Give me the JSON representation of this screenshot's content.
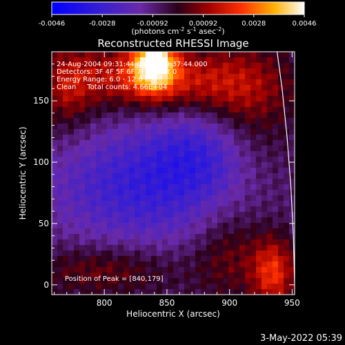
{
  "chart_data": {
    "type": "heatmap",
    "title": "Reconstructed RHESSI Image",
    "xlabel": "Heliocentric X (arcsec)",
    "ylabel": "Heliocentric Y (arcsec)",
    "xlim": [
      758,
      952
    ],
    "ylim": [
      -8,
      190
    ],
    "xticks": [
      800,
      850,
      900,
      950
    ],
    "yticks": [
      0,
      50,
      100,
      150
    ],
    "colorbar": {
      "ticks": [
        "-0.0046",
        "-0.0028",
        "-0.00092",
        "0.00092",
        "0.0028",
        "0.0046"
      ],
      "range": [
        -0.0046,
        0.0046
      ],
      "unit_label": {
        "pre": "(photons cm",
        "sup1": "-2",
        "mid1": " s",
        "sup2": "-1",
        "mid2": " asec",
        "sup3": "-2",
        "post": ")"
      }
    },
    "annotations": [
      "24-Aug-2004 09:31:44.000 to 09:37:44.000",
      "Detectors: 3F 4F 5F 6F 7F 8F, Att 0",
      "Energy Range: 6.0 - 12.0 keV",
      "Clean     Total counts: 4.66E+04"
    ],
    "peak_label": "Position of Peak = [840,179]",
    "peak": [
      840,
      179
    ],
    "limb": [
      [
        938,
        190
      ],
      [
        942,
        160
      ],
      [
        946,
        120
      ],
      [
        949,
        80
      ],
      [
        951,
        40
      ],
      [
        952,
        0
      ],
      [
        952,
        -8
      ]
    ],
    "intensity_features": [
      {
        "x": 840,
        "y": 182,
        "sigma_x": 12,
        "sigma_y": 16,
        "value": 0.0046
      },
      {
        "x": 815,
        "y": 170,
        "sigma_x": 35,
        "sigma_y": 18,
        "value": 0.0018
      },
      {
        "x": 880,
        "y": 165,
        "sigma_x": 40,
        "sigma_y": 18,
        "value": 0.0016
      },
      {
        "x": 770,
        "y": 160,
        "sigma_x": 15,
        "sigma_y": 25,
        "value": 0.0015
      },
      {
        "x": 915,
        "y": 140,
        "sigma_x": 25,
        "sigma_y": 40,
        "value": 0.0012
      },
      {
        "x": 935,
        "y": 10,
        "sigma_x": 12,
        "sigma_y": 20,
        "value": 0.0026
      },
      {
        "x": 800,
        "y": 12,
        "sigma_x": 40,
        "sigma_y": 14,
        "value": 0.0013
      },
      {
        "x": 900,
        "y": 25,
        "sigma_x": 20,
        "sigma_y": 25,
        "value": 0.0012
      },
      {
        "x": 830,
        "y": 80,
        "sigma_x": 55,
        "sigma_y": 35,
        "value": -0.0022
      },
      {
        "x": 880,
        "y": 110,
        "sigma_x": 30,
        "sigma_y": 25,
        "value": -0.0015
      }
    ]
  },
  "footer": {
    "timestamp": "3-May-2022 05:39"
  }
}
